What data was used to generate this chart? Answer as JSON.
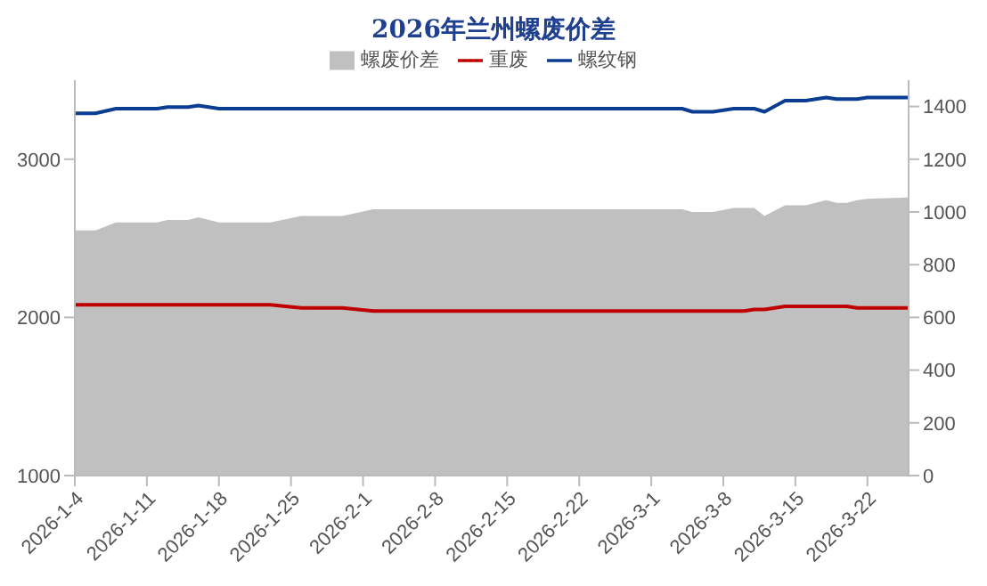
{
  "chart_data": {
    "type": "line",
    "title": "2026年兰州螺废价差",
    "x": [
      "2026-01-04",
      "2026-01-06",
      "2026-01-08",
      "2026-01-12",
      "2026-01-13",
      "2026-01-15",
      "2026-01-16",
      "2026-01-18",
      "2026-01-23",
      "2026-01-26",
      "2026-01-30",
      "2026-02-02",
      "2026-03-04",
      "2026-03-05",
      "2026-03-07",
      "2026-03-09",
      "2026-03-10",
      "2026-03-11",
      "2026-03-12",
      "2026-03-14",
      "2026-03-16",
      "2026-03-18",
      "2026-03-19",
      "2026-03-20",
      "2026-03-21",
      "2026-03-22",
      "2026-03-26"
    ],
    "series": [
      {
        "name": "螺废价差",
        "type": "area",
        "axis": "y2",
        "color": "#c0c0c0",
        "values": [
          930,
          930,
          960,
          960,
          970,
          970,
          980,
          960,
          960,
          985,
          985,
          1010,
          1010,
          1000,
          1000,
          1015,
          1015,
          1015,
          985,
          1025,
          1025,
          1045,
          1035,
          1035,
          1045,
          1050,
          1055
        ]
      },
      {
        "name": "重废",
        "color": "#c00000",
        "values": [
          2080,
          2080,
          2080,
          2080,
          2080,
          2080,
          2080,
          2080,
          2080,
          2060,
          2060,
          2040,
          2040,
          2040,
          2040,
          2040,
          2040,
          2050,
          2050,
          2070,
          2070,
          2070,
          2070,
          2070,
          2060,
          2060,
          2060
        ]
      },
      {
        "name": "螺纹钢",
        "color": "#0a3d91",
        "values": [
          3290,
          3290,
          3320,
          3320,
          3330,
          3330,
          3340,
          3320,
          3320,
          3320,
          3320,
          3320,
          3320,
          3300,
          3300,
          3320,
          3320,
          3320,
          3300,
          3370,
          3370,
          3390,
          3380,
          3380,
          3380,
          3390,
          3390
        ]
      }
    ],
    "xlim": [
      "2026-01-04",
      "2026-03-26"
    ],
    "xticks": [
      {
        "value": "2026-01-04",
        "label": "2026-1-4"
      },
      {
        "value": "2026-01-11",
        "label": "2026-1-11"
      },
      {
        "value": "2026-01-18",
        "label": "2026-1-18"
      },
      {
        "value": "2026-01-25",
        "label": "2026-1-25"
      },
      {
        "value": "2026-02-01",
        "label": "2026-2-1"
      },
      {
        "value": "2026-02-08",
        "label": "2026-2-8"
      },
      {
        "value": "2026-02-15",
        "label": "2026-2-15"
      },
      {
        "value": "2026-02-22",
        "label": "2026-2-22"
      },
      {
        "value": "2026-03-01",
        "label": "2026-3-1"
      },
      {
        "value": "2026-03-08",
        "label": "2026-3-8"
      },
      {
        "value": "2026-03-15",
        "label": "2026-3-15"
      },
      {
        "value": "2026-03-22",
        "label": "2026-3-22"
      }
    ],
    "ylim": [
      1000,
      3500
    ],
    "yticks": [
      1000,
      2000,
      3000
    ],
    "y2lim": [
      0,
      1500
    ],
    "y2ticks": [
      0,
      200,
      400,
      600,
      800,
      1000,
      1200,
      1400
    ],
    "legend": "top",
    "marker": "none",
    "line_style": "solid"
  }
}
